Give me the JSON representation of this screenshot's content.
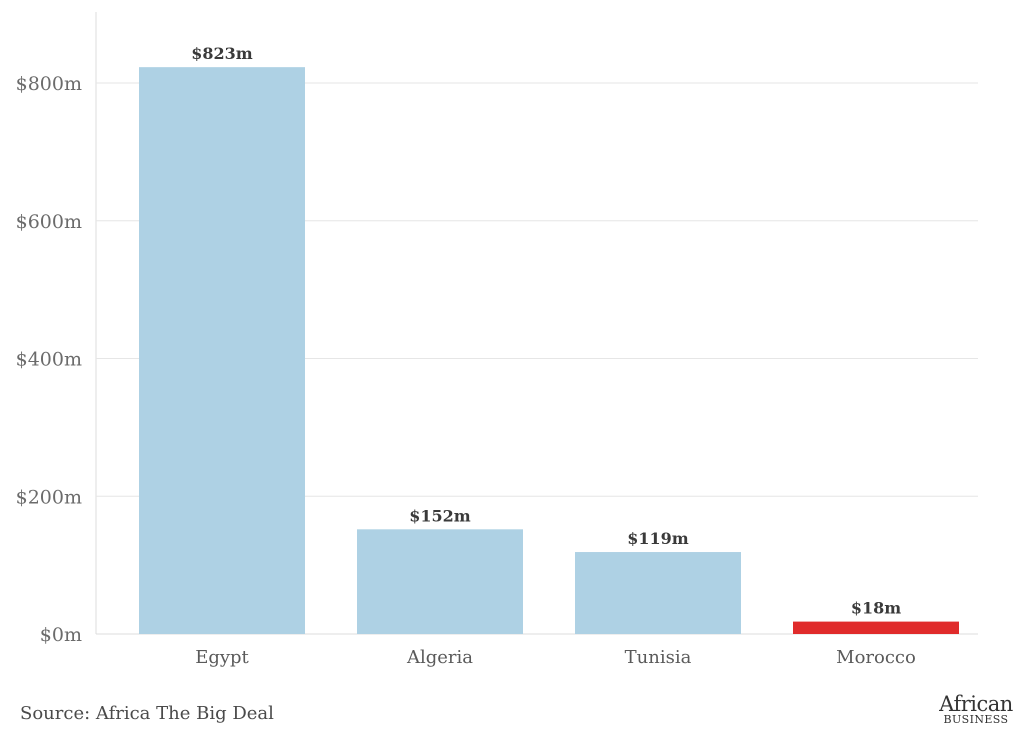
{
  "chart_data": {
    "type": "bar",
    "categories": [
      "Egypt",
      "Algeria",
      "Tunisia",
      "Morocco"
    ],
    "values": [
      823,
      152,
      119,
      18
    ],
    "data_labels": [
      "$823m",
      "$152m",
      "$119m",
      "$18m"
    ],
    "bar_colors": [
      "#aed1e4",
      "#aed1e4",
      "#aed1e4",
      "#e02b2b"
    ],
    "y_ticks": [
      0,
      200,
      400,
      600,
      800
    ],
    "y_tick_labels": [
      "$0m",
      "$200m",
      "$400m",
      "$600m",
      "$800m"
    ],
    "ylim": [
      0,
      900
    ],
    "grid": true,
    "title": "",
    "xlabel": "",
    "ylabel": ""
  },
  "source": "Source: Africa The Big Deal",
  "logo": {
    "line1": "African",
    "line2": "BUSINESS"
  },
  "colors": {
    "gridline": "#e6e6e6",
    "axis": "#dcdcdc"
  }
}
